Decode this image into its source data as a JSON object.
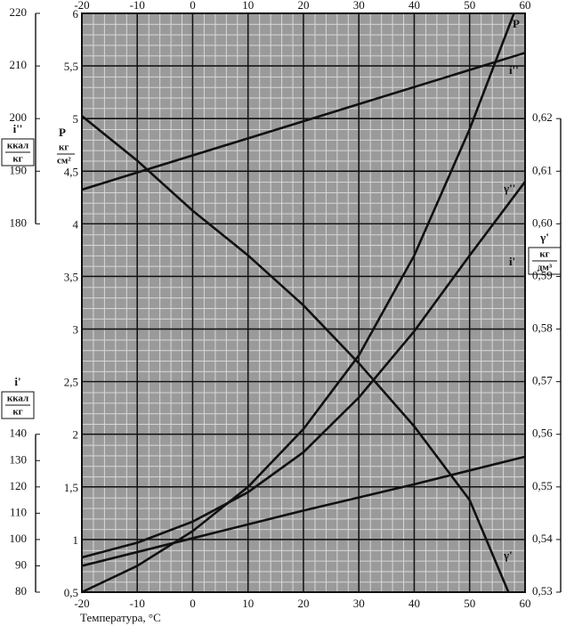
{
  "chart_data": {
    "type": "line",
    "x_label": "Температура, °C",
    "xlim": [
      -20,
      60
    ],
    "xticks": [
      -20,
      -10,
      0,
      10,
      20,
      30,
      40,
      50,
      60
    ],
    "grid": true,
    "axes": {
      "p": {
        "label": "P",
        "unit": [
          "кг",
          "см²"
        ],
        "lim": [
          0.5,
          6
        ],
        "ticks": [
          {
            "value": 0.5,
            "label": "0,5"
          },
          1,
          {
            "value": 1.5,
            "label": "1,5"
          },
          2,
          {
            "value": 2.5,
            "label": "2,5"
          },
          3,
          {
            "value": 3.5,
            "label": "3,5"
          },
          4,
          {
            "value": 4.5,
            "label": "4,5"
          },
          5,
          {
            "value": 5.5,
            "label": "5,5"
          },
          6
        ]
      },
      "gamma": {
        "label": "γ'",
        "unit": [
          "кг",
          "дм³"
        ],
        "lim": [
          0.53,
          0.64
        ],
        "ticks": [
          {
            "value": 0.53,
            "label": "0,53"
          },
          {
            "value": 0.54,
            "label": "0,54"
          },
          {
            "value": 0.55,
            "label": "0,55"
          },
          {
            "value": 0.56,
            "label": "0,56"
          },
          {
            "value": 0.57,
            "label": "0,57"
          },
          {
            "value": 0.58,
            "label": "0,58"
          },
          {
            "value": 0.59,
            "label": "0,59"
          },
          {
            "value": 0.6,
            "label": "0,60"
          },
          {
            "value": 0.61,
            "label": "0,61"
          },
          {
            "value": 0.62,
            "label": "0,62"
          }
        ]
      },
      "i1": {
        "label": "i'",
        "unit": [
          "ккал",
          "кг"
        ],
        "lim": [
          80,
          300
        ],
        "ticks": [
          80,
          90,
          100,
          110,
          120,
          130,
          140
        ]
      },
      "i2": {
        "label": "i''",
        "unit": [
          "ккал",
          "кг"
        ],
        "lim": [
          110,
          220
        ],
        "ticks": [
          180,
          190,
          200,
          210,
          220
        ]
      }
    },
    "series": [
      {
        "name": "P",
        "axis": "p",
        "color": "#111111",
        "x": [
          -20,
          -10,
          0,
          10,
          20,
          30,
          40,
          50,
          58
        ],
        "values": [
          0.5,
          0.75,
          1.08,
          1.5,
          2.05,
          2.75,
          3.7,
          4.9,
          6
        ]
      },
      {
        "name": "i''",
        "axis": "i2",
        "color": "#111111",
        "x": [
          -20,
          60
        ],
        "values": [
          186.5,
          212.5
        ]
      },
      {
        "name": "γ''",
        "axis": "p",
        "color": "#111111",
        "x": [
          -20,
          -10,
          0,
          10,
          20,
          30,
          40,
          50,
          60
        ],
        "values": [
          0.83,
          0.97,
          1.17,
          1.45,
          1.83,
          2.35,
          2.98,
          3.7,
          4.4
        ]
      },
      {
        "name": "i'",
        "axis": "i1",
        "color": "#111111",
        "x": [
          -20,
          0,
          20,
          40,
          60
        ],
        "values": [
          90,
          100.5,
          111,
          121,
          131.5
        ]
      },
      {
        "name": "γ'",
        "axis": "gamma",
        "color": "#111111",
        "x": [
          -20,
          -10,
          0,
          10,
          20,
          30,
          40,
          50,
          57
        ],
        "values": [
          0.6205,
          0.612,
          0.6025,
          0.594,
          0.5845,
          0.5735,
          0.5615,
          0.5475,
          0.53
        ]
      }
    ]
  }
}
